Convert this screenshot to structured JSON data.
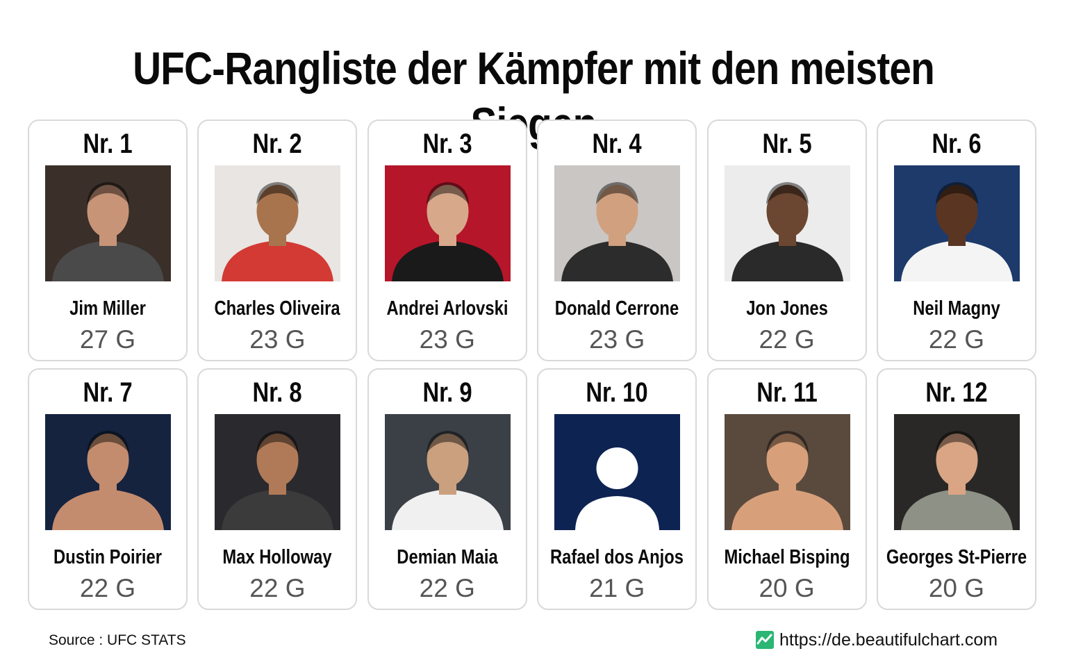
{
  "title": "UFC-Rangliste der Kämpfer mit den meisten Siegen",
  "fighters": [
    {
      "rank": "Nr. 1",
      "name": "Jim Miller",
      "wins": "27 G",
      "wins_value": 27,
      "bg": "#3a2f29",
      "skin": "#c89478",
      "shirt": "#4a4a4a"
    },
    {
      "rank": "Nr. 2",
      "name": "Charles Oliveira",
      "wins": "23 G",
      "wins_value": 23,
      "bg": "#e8e5e2",
      "skin": "#a8744e",
      "shirt": "#d23a33"
    },
    {
      "rank": "Nr. 3",
      "name": "Andrei Arlovski",
      "wins": "23 G",
      "wins_value": 23,
      "bg": "#b5162a",
      "skin": "#d8a88a",
      "shirt": "#1a1a1a"
    },
    {
      "rank": "Nr. 4",
      "name": "Donald Cerrone",
      "wins": "23 G",
      "wins_value": 23,
      "bg": "#c9c6c3",
      "skin": "#d0a07f",
      "shirt": "#2c2c2c"
    },
    {
      "rank": "Nr. 5",
      "name": "Jon Jones",
      "wins": "22 G",
      "wins_value": 22,
      "bg": "#ececec",
      "skin": "#6b4630",
      "shirt": "#2a2a2a"
    },
    {
      "rank": "Nr. 6",
      "name": "Neil Magny",
      "wins": "22 G",
      "wins_value": 22,
      "bg": "#1d3a6b",
      "skin": "#5a3522",
      "shirt": "#f4f4f4"
    },
    {
      "rank": "Nr. 7",
      "name": "Dustin Poirier",
      "wins": "22 G",
      "wins_value": 22,
      "bg": "#15233f",
      "skin": "#c48c6e",
      "shirt": "#c48c6e"
    },
    {
      "rank": "Nr. 8",
      "name": "Max Holloway",
      "wins": "22 G",
      "wins_value": 22,
      "bg": "#2a2a2e",
      "skin": "#b07a58",
      "shirt": "#3b3b3b"
    },
    {
      "rank": "Nr. 9",
      "name": "Demian Maia",
      "wins": "22 G",
      "wins_value": 22,
      "bg": "#3b3f46",
      "skin": "#caa07e",
      "shirt": "#f0f0f0"
    },
    {
      "rank": "Nr. 10",
      "name": "Rafael dos Anjos",
      "wins": "21 G",
      "wins_value": 21,
      "placeholder": true
    },
    {
      "rank": "Nr. 11",
      "name": "Michael Bisping",
      "wins": "20 G",
      "wins_value": 20,
      "bg": "#5a4a3e",
      "skin": "#d8a07a",
      "shirt": "#d8a07a"
    },
    {
      "rank": "Nr. 12",
      "name": "Georges St-Pierre",
      "wins": "20 G",
      "wins_value": 20,
      "bg": "#2a2826",
      "skin": "#d9a585",
      "shirt": "#8d9186"
    }
  ],
  "placeholder_colors": {
    "bg": "#0d2352",
    "figure": "#ffffff"
  },
  "footer": {
    "source": "Source : UFC STATS",
    "site": "https://de.beautifulchart.com"
  },
  "colors": {
    "accent": "#2bb673",
    "card_border": "#d9d9d9",
    "wins_text": "#555555"
  }
}
